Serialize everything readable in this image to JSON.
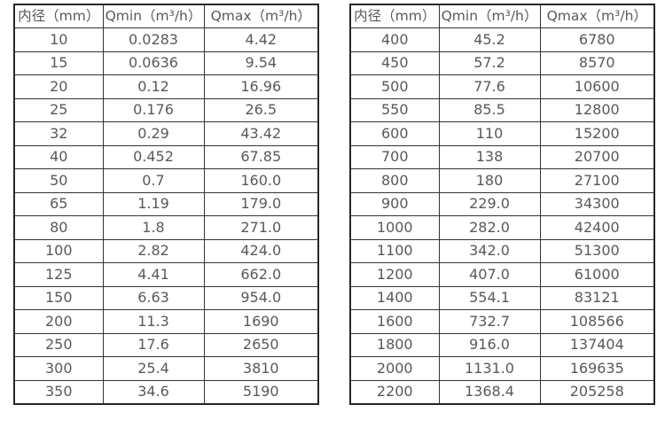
{
  "page": {
    "background_color": "#ffffff",
    "text_color": "#595959",
    "border_color": "#333333"
  },
  "tables": [
    {
      "name": "flow-table-small-diameters",
      "headers": [
        "内径（mm）",
        "Qmin（m³/h）",
        "Qmax（m³/h）"
      ],
      "rows": [
        [
          "10",
          "0.0283",
          "4.42"
        ],
        [
          "15",
          "0.0636",
          "9.54"
        ],
        [
          "20",
          "0.12",
          "16.96"
        ],
        [
          "25",
          "0.176",
          "26.5"
        ],
        [
          "32",
          "0.29",
          "43.42"
        ],
        [
          "40",
          "0.452",
          "67.85"
        ],
        [
          "50",
          "0.7",
          "160.0"
        ],
        [
          "65",
          "1.19",
          "179.0"
        ],
        [
          "80",
          "1.8",
          "271.0"
        ],
        [
          "100",
          "2.82",
          "424.0"
        ],
        [
          "125",
          "4.41",
          "662.0"
        ],
        [
          "150",
          "6.63",
          "954.0"
        ],
        [
          "200",
          "11.3",
          "1690"
        ],
        [
          "250",
          "17.6",
          "2650"
        ],
        [
          "300",
          "25.4",
          "3810"
        ],
        [
          "350",
          "34.6",
          "5190"
        ]
      ]
    },
    {
      "name": "flow-table-large-diameters",
      "headers": [
        "内径（mm）",
        "Qmin（m³/h）",
        "Qmax（m³/h）"
      ],
      "rows": [
        [
          "400",
          "45.2",
          "6780"
        ],
        [
          "450",
          "57.2",
          "8570"
        ],
        [
          "500",
          "77.6",
          "10600"
        ],
        [
          "550",
          "85.5",
          "12800"
        ],
        [
          "600",
          "110",
          "15200"
        ],
        [
          "700",
          "138",
          "20700"
        ],
        [
          "800",
          "180",
          "27100"
        ],
        [
          "900",
          "229.0",
          "34300"
        ],
        [
          "1000",
          "282.0",
          "42400"
        ],
        [
          "1100",
          "342.0",
          "51300"
        ],
        [
          "1200",
          "407.0",
          "61000"
        ],
        [
          "1400",
          "554.1",
          "83121"
        ],
        [
          "1600",
          "732.7",
          "108566"
        ],
        [
          "1800",
          "916.0",
          "137404"
        ],
        [
          "2000",
          "1131.0",
          "169635"
        ],
        [
          "2200",
          "1368.4",
          "205258"
        ]
      ]
    }
  ]
}
